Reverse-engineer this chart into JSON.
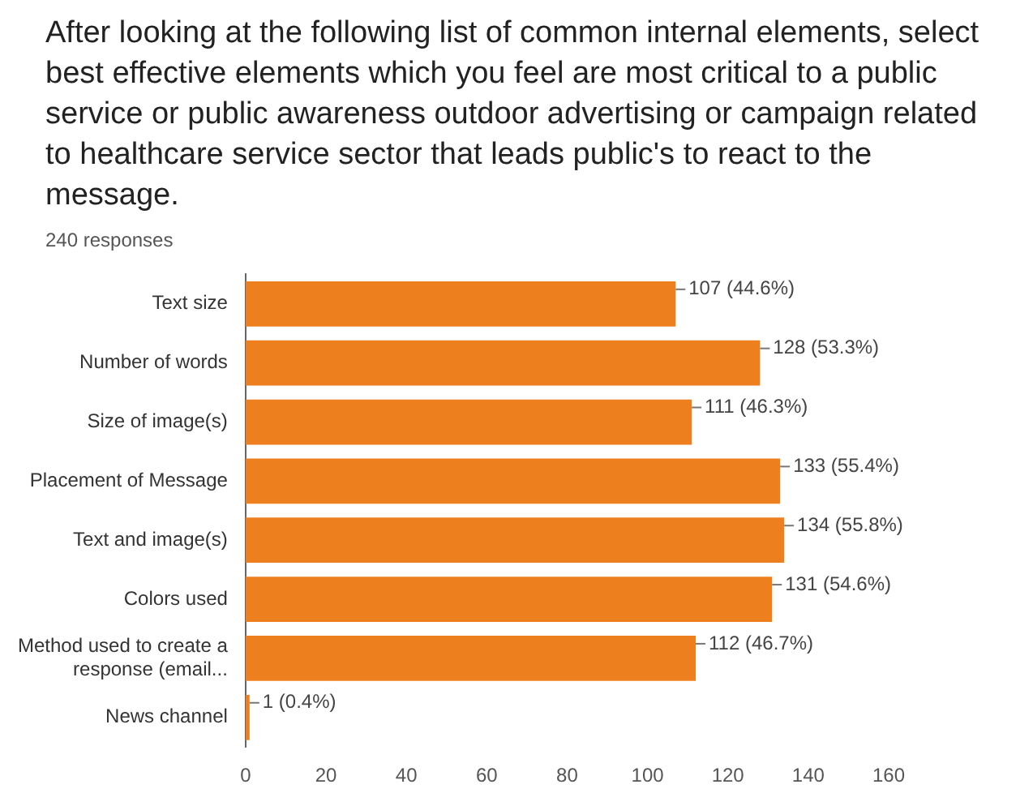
{
  "chart_data": {
    "type": "bar",
    "orientation": "horizontal",
    "title": "After looking at the following list of common internal elements, select best effective elements which you feel are most critical to a public service or public awareness outdoor advertising or campaign related to healthcare service sector that leads public's to react to the message.",
    "subtitle": "240 responses",
    "categories": [
      "Text size",
      "Number of words",
      "Size of image(s)",
      "Placement of Message",
      "Text and image(s)",
      "Colors used",
      "Method used to create a response (email...",
      "News channel"
    ],
    "values": [
      107,
      128,
      111,
      133,
      134,
      131,
      112,
      1
    ],
    "value_labels": [
      "107 (44.6%)",
      "128 (53.3%)",
      "111 (46.3%)",
      "133 (55.4%)",
      "134 (55.8%)",
      "131 (54.6%)",
      "112 (46.7%)",
      "1 (0.4%)"
    ],
    "color": "#ee7f1f",
    "xlim": [
      0,
      160
    ],
    "xticks": [
      0,
      20,
      40,
      60,
      80,
      100,
      120,
      140,
      160
    ]
  }
}
